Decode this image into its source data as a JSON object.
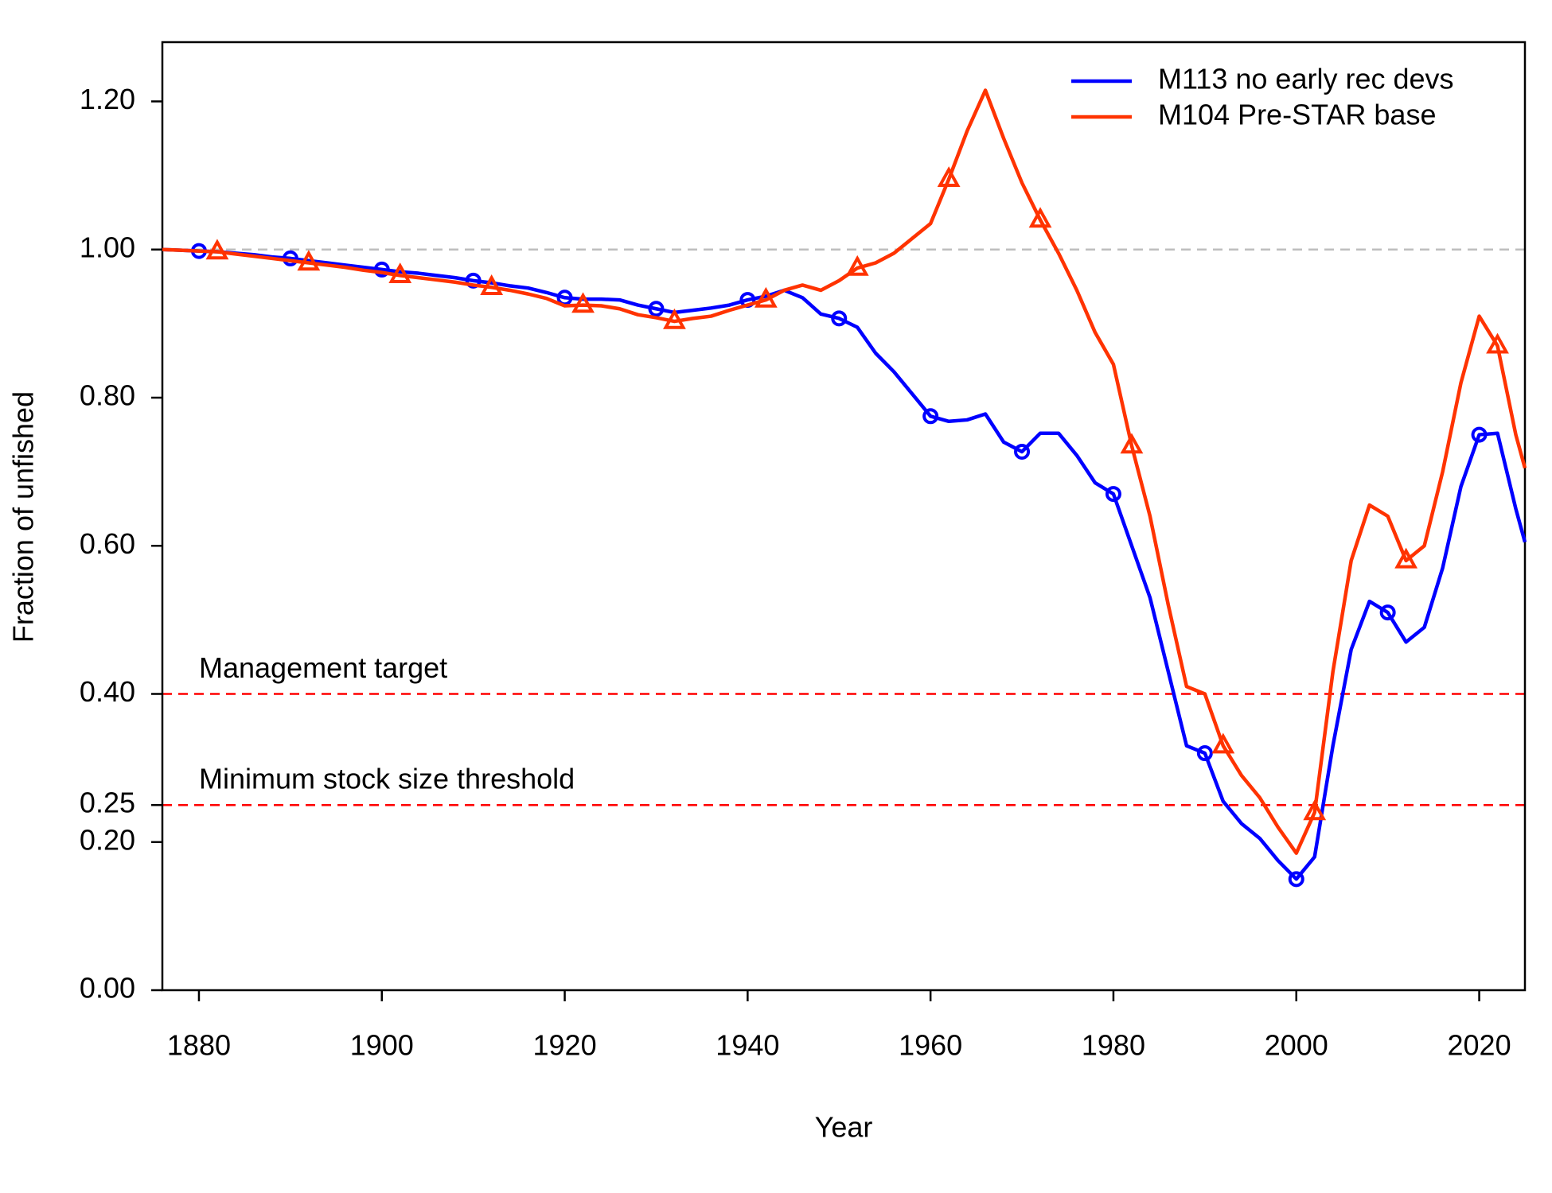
{
  "chart_data": {
    "type": "line",
    "xlabel": "Year",
    "ylabel": "Fraction of unfished",
    "xlim": [
      1876,
      2025
    ],
    "ylim": [
      0,
      1.28
    ],
    "xticks": [
      1880,
      1900,
      1920,
      1940,
      1960,
      1980,
      2000,
      2020
    ],
    "yticks": [
      {
        "value": 0,
        "label": "0.00"
      },
      {
        "value": 0.2,
        "label": "0.20"
      },
      {
        "value": 0.25,
        "label": "0.25"
      },
      {
        "value": 0.4,
        "label": "0.40"
      },
      {
        "value": 0.6,
        "label": "0.60"
      },
      {
        "value": 0.8,
        "label": "0.80"
      },
      {
        "value": 1,
        "label": "1.00"
      },
      {
        "value": 1.2,
        "label": "1.20"
      }
    ],
    "legend": "top-right",
    "reference_lines": [
      {
        "value": 1,
        "color": "#bebebe"
      },
      {
        "value": 0.4,
        "color": "#ff0000",
        "label": "Management target"
      },
      {
        "value": 0.25,
        "color": "#ff0000",
        "label": "Minimum stock size threshold"
      }
    ],
    "x": [
      1876,
      1878,
      1880,
      1882,
      1884,
      1886,
      1888,
      1890,
      1892,
      1894,
      1896,
      1898,
      1900,
      1902,
      1904,
      1906,
      1908,
      1910,
      1912,
      1914,
      1916,
      1918,
      1920,
      1922,
      1924,
      1926,
      1928,
      1930,
      1932,
      1934,
      1936,
      1938,
      1940,
      1942,
      1944,
      1946,
      1948,
      1950,
      1952,
      1954,
      1956,
      1958,
      1960,
      1962,
      1964,
      1966,
      1968,
      1970,
      1972,
      1974,
      1976,
      1978,
      1980,
      1982,
      1984,
      1986,
      1988,
      1990,
      1992,
      1994,
      1996,
      1998,
      2000,
      2002,
      2004,
      2006,
      2008,
      2010,
      2012,
      2014,
      2016,
      2018,
      2020,
      2022,
      2024,
      2025
    ],
    "series": [
      {
        "name": "M113 no early rec devs",
        "color": "#0000ff",
        "marker": "circle",
        "values": [
          1.0,
          0.999,
          0.998,
          0.997,
          0.995,
          0.993,
          0.99,
          0.988,
          0.985,
          0.982,
          0.979,
          0.976,
          0.973,
          0.97,
          0.968,
          0.965,
          0.962,
          0.958,
          0.955,
          0.951,
          0.948,
          0.942,
          0.935,
          0.933,
          0.933,
          0.932,
          0.925,
          0.92,
          0.915,
          0.918,
          0.921,
          0.925,
          0.932,
          0.937,
          0.945,
          0.935,
          0.913,
          0.907,
          0.895,
          0.86,
          0.835,
          0.805,
          0.775,
          0.768,
          0.77,
          0.778,
          0.74,
          0.727,
          0.752,
          0.752,
          0.722,
          0.685,
          0.67,
          0.6,
          0.53,
          0.43,
          0.33,
          0.32,
          0.255,
          0.225,
          0.205,
          0.175,
          0.15,
          0.18,
          0.33,
          0.46,
          0.525,
          0.51,
          0.47,
          0.49,
          0.57,
          0.68,
          0.75,
          0.752,
          0.65,
          0.605
        ]
      },
      {
        "name": "M104 Pre-STAR base",
        "color": "#ff3300",
        "marker": "triangle",
        "values": [
          1.0,
          0.999,
          0.998,
          0.997,
          0.994,
          0.991,
          0.988,
          0.985,
          0.982,
          0.979,
          0.976,
          0.972,
          0.969,
          0.965,
          0.962,
          0.959,
          0.956,
          0.952,
          0.949,
          0.945,
          0.94,
          0.934,
          0.924,
          0.925,
          0.924,
          0.92,
          0.912,
          0.908,
          0.903,
          0.907,
          0.91,
          0.918,
          0.925,
          0.932,
          0.945,
          0.952,
          0.945,
          0.958,
          0.975,
          0.982,
          0.995,
          1.015,
          1.035,
          1.095,
          1.16,
          1.215,
          1.15,
          1.09,
          1.04,
          0.995,
          0.945,
          0.888,
          0.845,
          0.735,
          0.64,
          0.52,
          0.41,
          0.4,
          0.33,
          0.29,
          0.26,
          0.22,
          0.185,
          0.24,
          0.43,
          0.58,
          0.655,
          0.64,
          0.58,
          0.6,
          0.7,
          0.82,
          0.91,
          0.87,
          0.75,
          0.705
        ]
      }
    ]
  }
}
